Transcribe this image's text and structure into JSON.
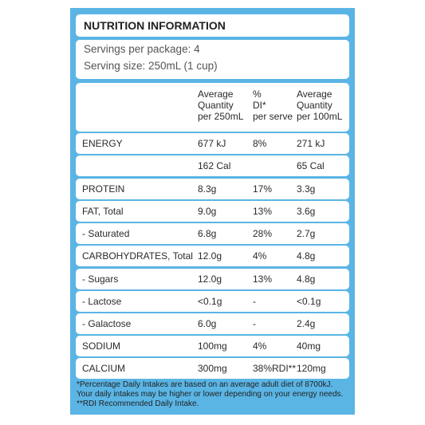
{
  "title": "NUTRITION INFORMATION",
  "servings": [
    "Servings per package: 4",
    "Serving size: 250mL (1 cup)"
  ],
  "table": {
    "header": [
      "Average\nQuantity\nper 250mL",
      "%\nDI*\nper serve",
      "Average\nQuantity\nper 100mL"
    ],
    "rows": [
      [
        "ENERGY",
        "677 kJ",
        "8%",
        "271 kJ"
      ],
      [
        null,
        "162 Cal",
        null,
        "65 Cal"
      ],
      [
        "PROTEIN",
        "8.3g",
        "17%",
        "3.3g"
      ],
      [
        "FAT, Total",
        "9.0g",
        "13%",
        "3.6g"
      ],
      [
        "- Saturated",
        "6.8g",
        "28%",
        "2.7g"
      ],
      [
        "CARBOHYDRATES, Total",
        "12.0g",
        "4%",
        "4.8g"
      ],
      [
        "- Sugars",
        "12.0g",
        "13%",
        "4.8g"
      ],
      [
        "- Lactose",
        "<0.1g",
        "-",
        "<0.1g"
      ],
      [
        "- Galactose",
        "6.0g",
        "-",
        "2.4g"
      ],
      [
        "SODIUM",
        "100mg",
        "4%",
        "40mg"
      ],
      [
        "CALCIUM",
        "300mg",
        "38%RDI**",
        "120mg"
      ]
    ]
  },
  "footnote": [
    "*Percentage Daily Intakes are based on an average adult diet of 8700kJ.",
    "Your daily intakes may be higher or lower depending on your energy needs.",
    "**RDI Recommended Daily Intake."
  ]
}
